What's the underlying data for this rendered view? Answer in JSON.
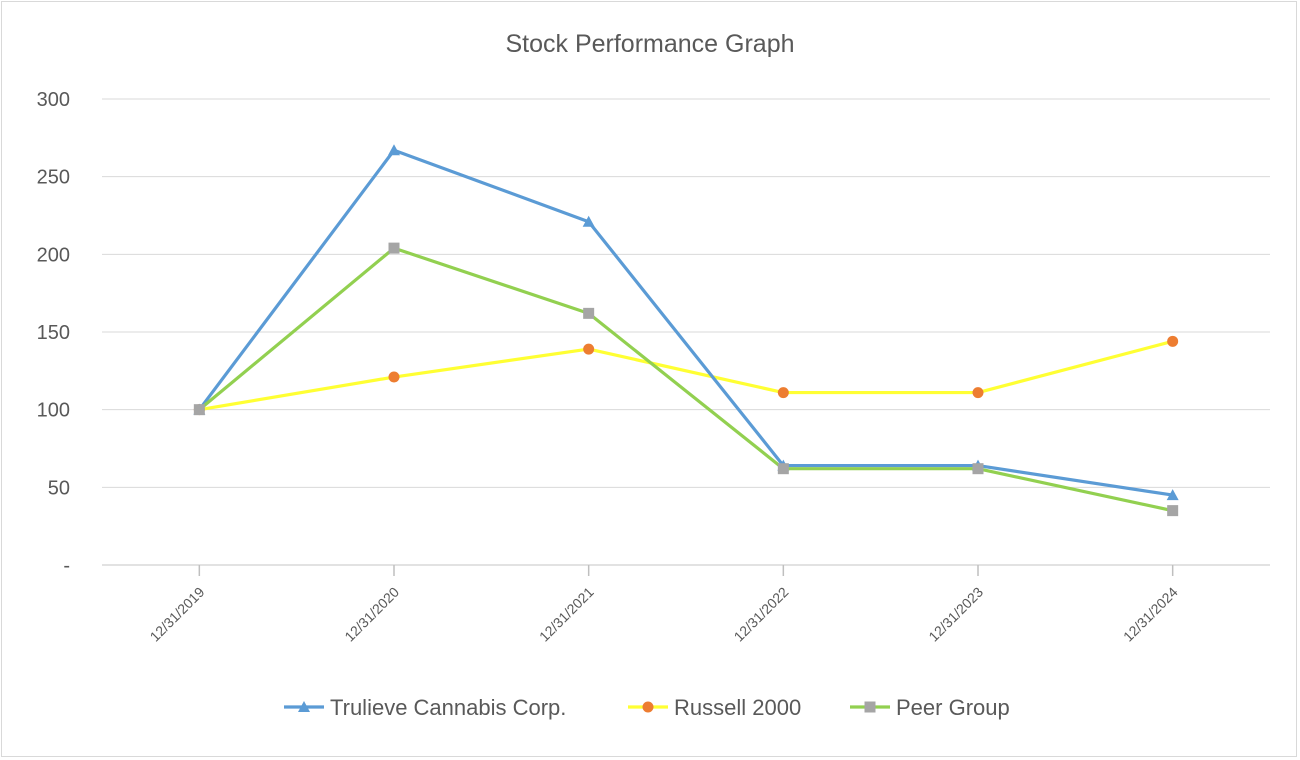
{
  "chart_data": {
    "type": "line",
    "title": "Stock Performance Graph",
    "xlabel": "",
    "ylabel": "",
    "categories": [
      "12/31/2019",
      "12/31/2020",
      "12/31/2021",
      "12/31/2022",
      "12/31/2023",
      "12/31/2024"
    ],
    "y_tick_labels": [
      "-",
      "50",
      "100",
      "150",
      "200",
      "250",
      "300"
    ],
    "y_tick_values": [
      0,
      50,
      100,
      150,
      200,
      250,
      300
    ],
    "ylim": [
      0,
      300
    ],
    "grid": true,
    "legend": "bottom",
    "series": [
      {
        "name": "Trulieve Cannabis Corp.",
        "values": [
          100,
          267,
          221,
          64,
          64,
          45
        ],
        "color": "#5b9bd5",
        "marker": "triangle"
      },
      {
        "name": "Russell 2000",
        "values": [
          100,
          121,
          139,
          111,
          111,
          144
        ],
        "color": "#ffff33",
        "marker_color": "#ed7d31",
        "marker": "circle"
      },
      {
        "name": "Peer Group",
        "values": [
          100,
          204,
          162,
          62,
          62,
          35
        ],
        "color": "#92d050",
        "marker_color": "#a5a5a5",
        "marker": "square"
      }
    ]
  }
}
